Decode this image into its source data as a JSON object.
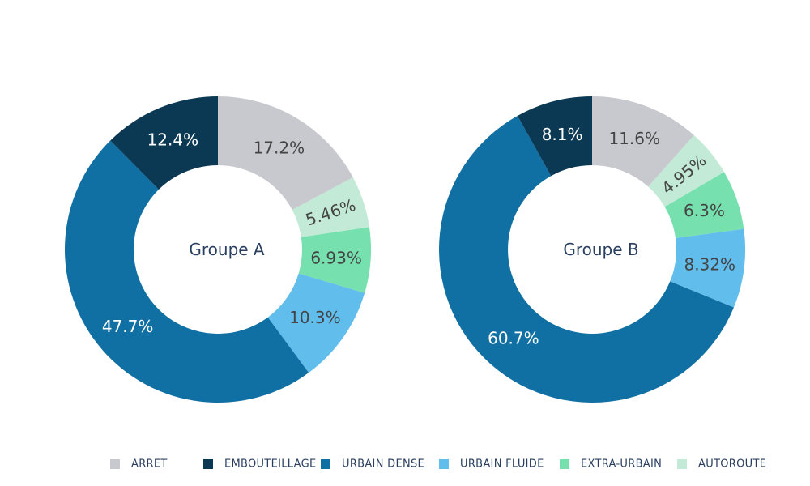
{
  "chart_data": {
    "type": "pie",
    "categories": [
      "ARRET",
      "EMBOUTEILLAGE",
      "URBAIN DENSE",
      "URBAIN FLUIDE",
      "EXTRA-URBAIN",
      "AUTOROUTE"
    ],
    "colors": {
      "ARRET": "#c8c9ce",
      "EMBOUTEILLAGE": "#0b3954",
      "URBAIN DENSE": "#1170a3",
      "URBAIN FLUIDE": "#61bdec",
      "EXTRA-URBAIN": "#77e0af",
      "AUTOROUTE": "#c3ead6"
    },
    "text_colors": {
      "light": "#ffffff",
      "dark": "#444444"
    },
    "order": [
      "ARRET",
      "AUTOROUTE",
      "EXTRA-URBAIN",
      "URBAIN FLUIDE",
      "URBAIN DENSE",
      "EMBOUTEILLAGE"
    ],
    "hole_fraction": 0.55,
    "series": [
      {
        "name": "Groupe A",
        "values": {
          "ARRET": 17.2,
          "AUTOROUTE": 5.46,
          "EXTRA-URBAIN": 6.93,
          "URBAIN FLUIDE": 10.3,
          "URBAIN DENSE": 47.7,
          "EMBOUTEILLAGE": 12.4
        },
        "labels": {
          "ARRET": "17.2%",
          "AUTOROUTE": "5.46%",
          "EXTRA-URBAIN": "6.93%",
          "URBAIN FLUIDE": "10.3%",
          "URBAIN DENSE": "47.7%",
          "EMBOUTEILLAGE": "12.4%"
        }
      },
      {
        "name": "Groupe B",
        "values": {
          "ARRET": 11.6,
          "AUTOROUTE": 4.95,
          "EXTRA-URBAIN": 6.3,
          "URBAIN FLUIDE": 8.32,
          "URBAIN DENSE": 60.7,
          "EMBOUTEILLAGE": 8.1
        },
        "labels": {
          "ARRET": "11.6%",
          "AUTOROUTE": "4.95%",
          "EXTRA-URBAIN": "6.3%",
          "URBAIN FLUIDE": "8.32%",
          "URBAIN DENSE": "60.7%",
          "EMBOUTEILLAGE": "8.1%"
        }
      }
    ],
    "legend": {
      "position": "bottom",
      "items": [
        "ARRET",
        "EMBOUTEILLAGE",
        "URBAIN DENSE",
        "URBAIN FLUIDE",
        "EXTRA-URBAIN",
        "AUTOROUTE"
      ]
    }
  }
}
